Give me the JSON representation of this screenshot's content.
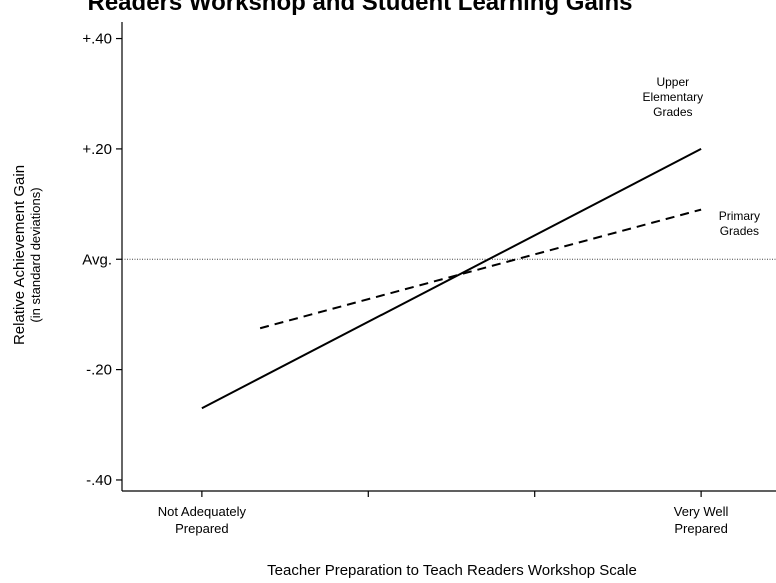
{
  "chart_data": {
    "type": "line",
    "title": "Readers Workshop and Student Learning Gains",
    "xlabel": "Teacher Preparation to Teach Readers Workshop Scale",
    "ylabel": "Relative Achievement Gain",
    "ylabel_sub": "(in standard deviations)",
    "x_tick_labels": [
      {
        "x": 0,
        "lines": [
          "Not Adequately",
          "Prepared"
        ]
      },
      {
        "x": 3,
        "lines": [
          "Very Well",
          "Prepared"
        ]
      }
    ],
    "x_ticks": [
      0,
      1,
      2,
      3
    ],
    "xlim": [
      -0.48,
      3.45
    ],
    "y_ticks": [
      {
        "value": 0.4,
        "label": "+.40"
      },
      {
        "value": 0.2,
        "label": "+.20"
      },
      {
        "value": 0.0,
        "label": "Avg."
      },
      {
        "value": -0.2,
        "label": "-.20"
      },
      {
        "value": -0.4,
        "label": "-.40"
      }
    ],
    "ylim": [
      -0.42,
      0.43
    ],
    "reference_line": {
      "y": 0.0,
      "style": "dotted"
    },
    "grid": false,
    "series": [
      {
        "name_lines": [
          "Upper",
          "Elementary",
          "Grades"
        ],
        "style": "solid",
        "color": "#000000",
        "x": [
          0,
          3
        ],
        "y": [
          -0.27,
          0.2
        ]
      },
      {
        "name_lines": [
          "Primary",
          "Grades"
        ],
        "style": "dashed",
        "color": "#000000",
        "x": [
          0.35,
          3
        ],
        "y": [
          -0.125,
          0.09
        ]
      }
    ]
  }
}
